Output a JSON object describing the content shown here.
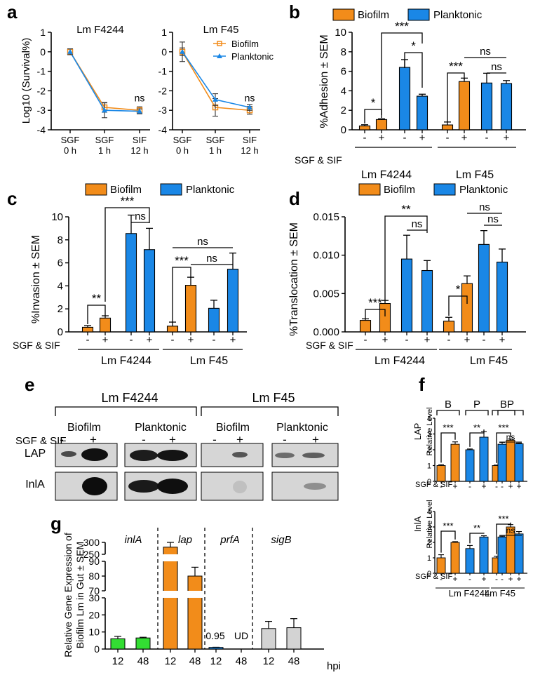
{
  "colors": {
    "biofilm": "#f28c1a",
    "planktonic": "#1a87e6",
    "inlA": "#33dd33",
    "lap": "#f28c1a",
    "prfA": "#1a87e6",
    "sigB": "#d3d3d3"
  },
  "panel_letters": {
    "a": "a",
    "b": "b",
    "c": "c",
    "d": "d",
    "e": "e",
    "f": "f",
    "g": "g"
  },
  "common": {
    "biofilm": "Biofilm",
    "planktonic": "Planktonic",
    "lm_f4244": "Lm F4244",
    "lm_f45": "Lm F45",
    "treatment": "SGF & SIF",
    "minus": "-",
    "plus": "+",
    "ns": "ns",
    "s1": "*",
    "s2": "**",
    "s3": "***"
  },
  "chart_data": [
    {
      "panel": "a",
      "type": "line",
      "ylabel": "Log10 (Survival%)",
      "ylim": [
        -4,
        1
      ],
      "yticks": [
        "1",
        "0",
        "-1",
        "-2",
        "-3",
        "-4"
      ],
      "xticks": [
        [
          "SGF",
          "0 h"
        ],
        [
          "SGF",
          "1 h"
        ],
        [
          "SIF",
          "12 h"
        ]
      ],
      "legend": [
        "Biofilm",
        "Planktonic"
      ],
      "subplots": [
        {
          "title": "Lm F4244",
          "annotation": "ns",
          "series": [
            {
              "name": "Biofilm",
              "values": [
                0.0,
                -2.85,
                -3.0
              ],
              "errors": [
                0.15,
                0.25,
                0.18
              ]
            },
            {
              "name": "Planktonic",
              "values": [
                0.0,
                -3.0,
                -3.05
              ],
              "errors": [
                0.15,
                0.38,
                0.12
              ]
            }
          ]
        },
        {
          "title": "Lm F45",
          "annotation": "ns",
          "series": [
            {
              "name": "Biofilm",
              "values": [
                0.0,
                -2.85,
                -3.0
              ],
              "errors": [
                0.2,
                0.45,
                0.2
              ]
            },
            {
              "name": "Planktonic",
              "values": [
                0.0,
                -2.45,
                -2.85
              ],
              "errors": [
                0.5,
                0.3,
                0.15
              ]
            }
          ]
        }
      ]
    },
    {
      "panel": "b",
      "type": "bar",
      "ylabel": "%Adhesion ± SEM",
      "ylim": [
        0,
        10
      ],
      "yticks": [
        "0",
        "2",
        "4",
        "6",
        "8",
        "10"
      ],
      "groups": [
        "Lm F4244",
        "Lm F45"
      ],
      "treatment_labels": [
        "-",
        "+",
        "-",
        "+",
        "-",
        "+",
        "-",
        "+"
      ],
      "series": [
        "Biofilm",
        "Biofilm",
        "Planktonic",
        "Planktonic",
        "Biofilm",
        "Biofilm",
        "Planktonic",
        "Planktonic"
      ],
      "values": [
        0.4,
        1.05,
        6.4,
        3.45,
        0.5,
        4.95,
        4.8,
        4.75
      ],
      "errors": [
        0.12,
        0.08,
        0.8,
        0.2,
        0.3,
        0.35,
        1.0,
        0.3
      ],
      "significance": [
        "*",
        "*",
        "***",
        "***",
        "ns",
        "ns"
      ]
    },
    {
      "panel": "c",
      "type": "bar",
      "ylabel": "%Invasion ± SEM",
      "ylim": [
        0,
        10
      ],
      "yticks": [
        "0",
        "2",
        "4",
        "6",
        "8",
        "10"
      ],
      "groups": [
        "Lm F4244",
        "Lm F45"
      ],
      "treatment_labels": [
        "-",
        "+",
        "-",
        "+",
        "-",
        "+",
        "-",
        "+"
      ],
      "series": [
        "Biofilm",
        "Biofilm",
        "Planktonic",
        "Planktonic",
        "Biofilm",
        "Biofilm",
        "Planktonic",
        "Planktonic"
      ],
      "values": [
        0.4,
        1.2,
        8.55,
        7.15,
        0.5,
        4.05,
        2.05,
        5.45
      ],
      "errors": [
        0.15,
        0.2,
        1.6,
        1.85,
        0.35,
        0.7,
        0.7,
        1.4
      ],
      "significance": [
        "**",
        "***",
        "ns",
        "***",
        "ns",
        "ns"
      ]
    },
    {
      "panel": "d",
      "type": "bar",
      "ylabel": "%Translocation ± SEM",
      "ylim": [
        0,
        0.015
      ],
      "yticks": [
        "0.000",
        "0.005",
        "0.010",
        "0.015"
      ],
      "groups": [
        "Lm F4244",
        "Lm F45"
      ],
      "treatment_labels": [
        "-",
        "+",
        "-",
        "+",
        "-",
        "+",
        "-",
        "+"
      ],
      "series": [
        "Biofilm",
        "Biofilm",
        "Planktonic",
        "Planktonic",
        "Biofilm",
        "Biofilm",
        "Planktonic",
        "Planktonic"
      ],
      "values": [
        0.0015,
        0.0037,
        0.0095,
        0.008,
        0.0014,
        0.0063,
        0.0114,
        0.0091
      ],
      "errors": [
        0.0002,
        0.0004,
        0.0031,
        0.0013,
        0.0005,
        0.001,
        0.0018,
        0.0017
      ],
      "significance": [
        "***",
        "**",
        "ns",
        "*",
        "ns",
        "ns"
      ]
    },
    {
      "panel": "f",
      "type": "bar",
      "ylabel": "Relative Level",
      "ylim": [
        0,
        4
      ],
      "yticks": [
        "0",
        "1",
        "2",
        "3",
        "4"
      ],
      "groups": [
        "Lm F4244",
        "Lm F45"
      ],
      "group_tags": [
        "B",
        "P",
        "B",
        "P"
      ],
      "treatment_labels": [
        "-",
        "+",
        "-",
        "+",
        "-",
        "+",
        "-",
        "+"
      ],
      "subplots": [
        {
          "protein": "LAP",
          "values": [
            1.0,
            2.35,
            2.0,
            2.8,
            1.0,
            2.6,
            2.35,
            2.38
          ],
          "errors": [
            0.05,
            0.15,
            0.05,
            0.35,
            0.03,
            0.08,
            0.12,
            0.05
          ],
          "significance": [
            "***",
            "**",
            "***",
            "ns"
          ]
        },
        {
          "protein": "InlA",
          "values": [
            1.0,
            2.0,
            1.6,
            2.35,
            1.0,
            3.0,
            2.35,
            2.55
          ],
          "errors": [
            0.2,
            0.05,
            0.2,
            0.08,
            0.1,
            0.15,
            0.05,
            0.15
          ],
          "significance": [
            "***",
            "**",
            "***",
            "ns"
          ]
        }
      ]
    },
    {
      "panel": "g",
      "type": "bar",
      "ylabel": [
        "Relative Gene Expression of",
        "Biofilm Lm in Gut ± SEM"
      ],
      "y_break": true,
      "yticks": [
        "0",
        "10",
        "20",
        "30",
        "70",
        "80",
        "90",
        "250",
        "300"
      ],
      "genes": [
        "inlA",
        "lap",
        "prfA",
        "sigB"
      ],
      "categories": [
        "12",
        "48"
      ],
      "x_unit": "hpi",
      "values": {
        "inlA": [
          6.0,
          6.5
        ],
        "lap": [
          280,
          80
        ],
        "prfA": [
          0.95,
          null
        ],
        "sigB": [
          12,
          12.5
        ]
      },
      "errors": {
        "inlA": [
          1.4,
          0.4
        ],
        "lap": [
          20,
          6
        ],
        "prfA": [
          0.1,
          null
        ],
        "sigB": [
          4.2,
          5.3
        ]
      },
      "data_labels": [
        "0.95",
        "UD"
      ]
    }
  ],
  "blot": {
    "lanes": [
      "-",
      "+",
      "-",
      "+",
      "-",
      "+",
      "-",
      "+"
    ],
    "proteins": [
      "LAP",
      "InlA"
    ]
  }
}
